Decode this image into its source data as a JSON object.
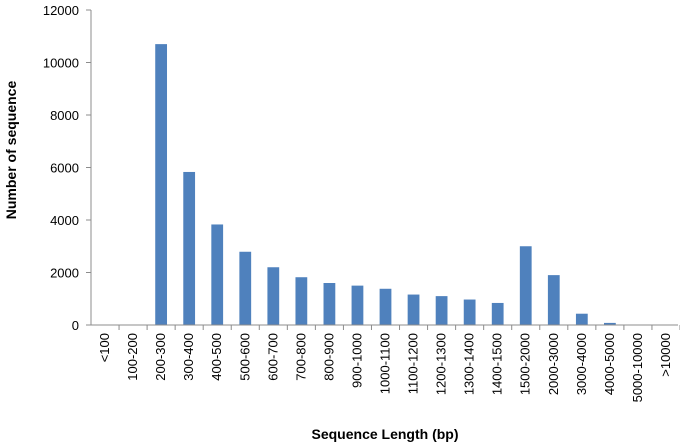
{
  "chart_data": {
    "type": "bar",
    "title": "",
    "xlabel": "Sequence Length (bp)",
    "ylabel": "Number of sequence",
    "ylim": [
      0,
      12000
    ],
    "yticks": [
      0,
      2000,
      4000,
      6000,
      8000,
      10000,
      12000
    ],
    "grid": false,
    "legend": "none",
    "bar_color": "#4f81bd",
    "categories": [
      "<100",
      "100-200",
      "200-300",
      "300-400",
      "400-500",
      "500-600",
      "600-700",
      "700-800",
      "800-900",
      "900-1000",
      "1000-1100",
      "1100-1200",
      "1200-1300",
      "1300-1400",
      "1400-1500",
      "1500-2000",
      "2000-3000",
      "3000-4000",
      "4000-5000",
      "5000-10000",
      ">10000"
    ],
    "values": [
      0,
      0,
      10700,
      5830,
      3830,
      2790,
      2200,
      1820,
      1600,
      1500,
      1380,
      1160,
      1100,
      970,
      840,
      3000,
      1900,
      430,
      80,
      0,
      0
    ]
  }
}
